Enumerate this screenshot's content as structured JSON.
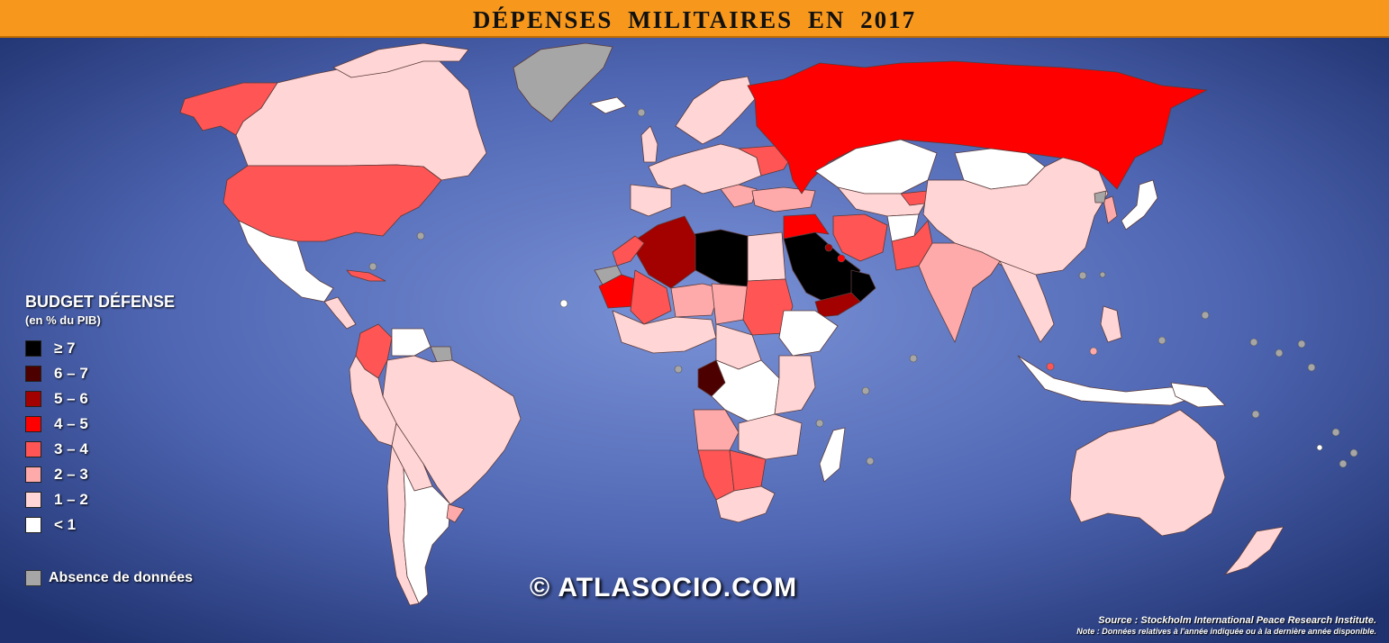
{
  "title": "DÉPENSES MILITAIRES EN 2017",
  "legend": {
    "title": "BUDGET DÉFENSE",
    "subtitle": "(en % du PIB)",
    "items": [
      {
        "label": "≥ 7",
        "color": "#000000"
      },
      {
        "label": "6 – 7",
        "color": "#4D0000"
      },
      {
        "label": "5 – 6",
        "color": "#A30000"
      },
      {
        "label": "4 – 5",
        "color": "#FF0000"
      },
      {
        "label": "3 – 4",
        "color": "#FF5555"
      },
      {
        "label": "2 – 3",
        "color": "#FFAAAA"
      },
      {
        "label": "1 – 2",
        "color": "#FFD5D5"
      },
      {
        "label": "< 1",
        "color": "#FFFFFF"
      }
    ],
    "nodata_label": "Absence de données",
    "nodata_color": "#A6A6A6"
  },
  "copyright": "© ATLASOCIO.COM",
  "source": "Source : Stockholm International Peace Research Institute.",
  "note": "Note : Données relatives à l'année indiquée ou à la dernière année disponible.",
  "colors": {
    "ocean_center": "#7087CF",
    "ocean_edge": "#1F326F",
    "header": "#F7981D"
  }
}
